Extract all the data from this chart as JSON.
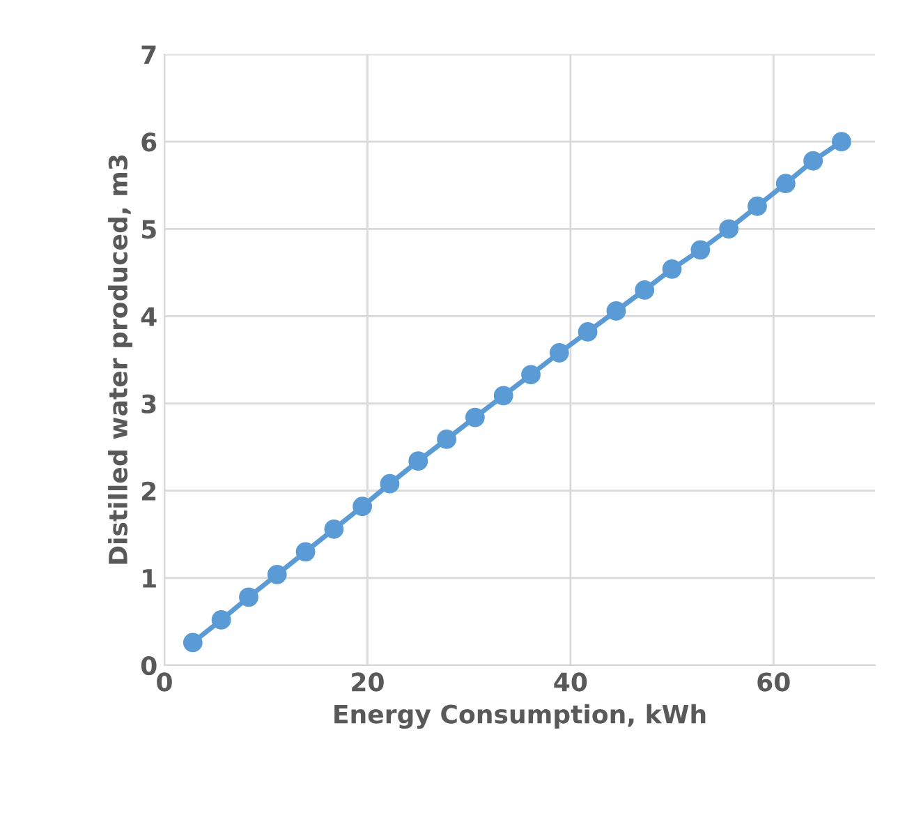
{
  "chart_data": {
    "type": "line",
    "xlabel": "Energy Consumption, kWh",
    "ylabel": "Distilled water produced, m3",
    "x": [
      2.8,
      5.6,
      8.3,
      11.1,
      13.9,
      16.7,
      19.5,
      22.2,
      25.0,
      27.8,
      30.6,
      33.4,
      36.1,
      38.9,
      41.7,
      44.5,
      47.3,
      50.0,
      52.8,
      55.6,
      58.4,
      61.2,
      63.9,
      66.7
    ],
    "series": [
      {
        "color": "#5b9bd5",
        "values": [
          0.26,
          0.52,
          0.78,
          1.04,
          1.3,
          1.56,
          1.82,
          2.08,
          2.34,
          2.59,
          2.84,
          3.09,
          3.33,
          3.58,
          3.82,
          4.06,
          4.3,
          4.54,
          4.76,
          5.0,
          5.26,
          5.52,
          5.78,
          6.0
        ]
      }
    ],
    "xlim": [
      0,
      70
    ],
    "xticks": [
      0,
      20,
      40,
      60
    ],
    "ylim": [
      0,
      7
    ],
    "yticks": [
      0,
      1,
      2,
      3,
      4,
      5,
      6,
      7
    ],
    "grid": true,
    "marker": "circle",
    "line_style": "solid",
    "legend": false
  }
}
